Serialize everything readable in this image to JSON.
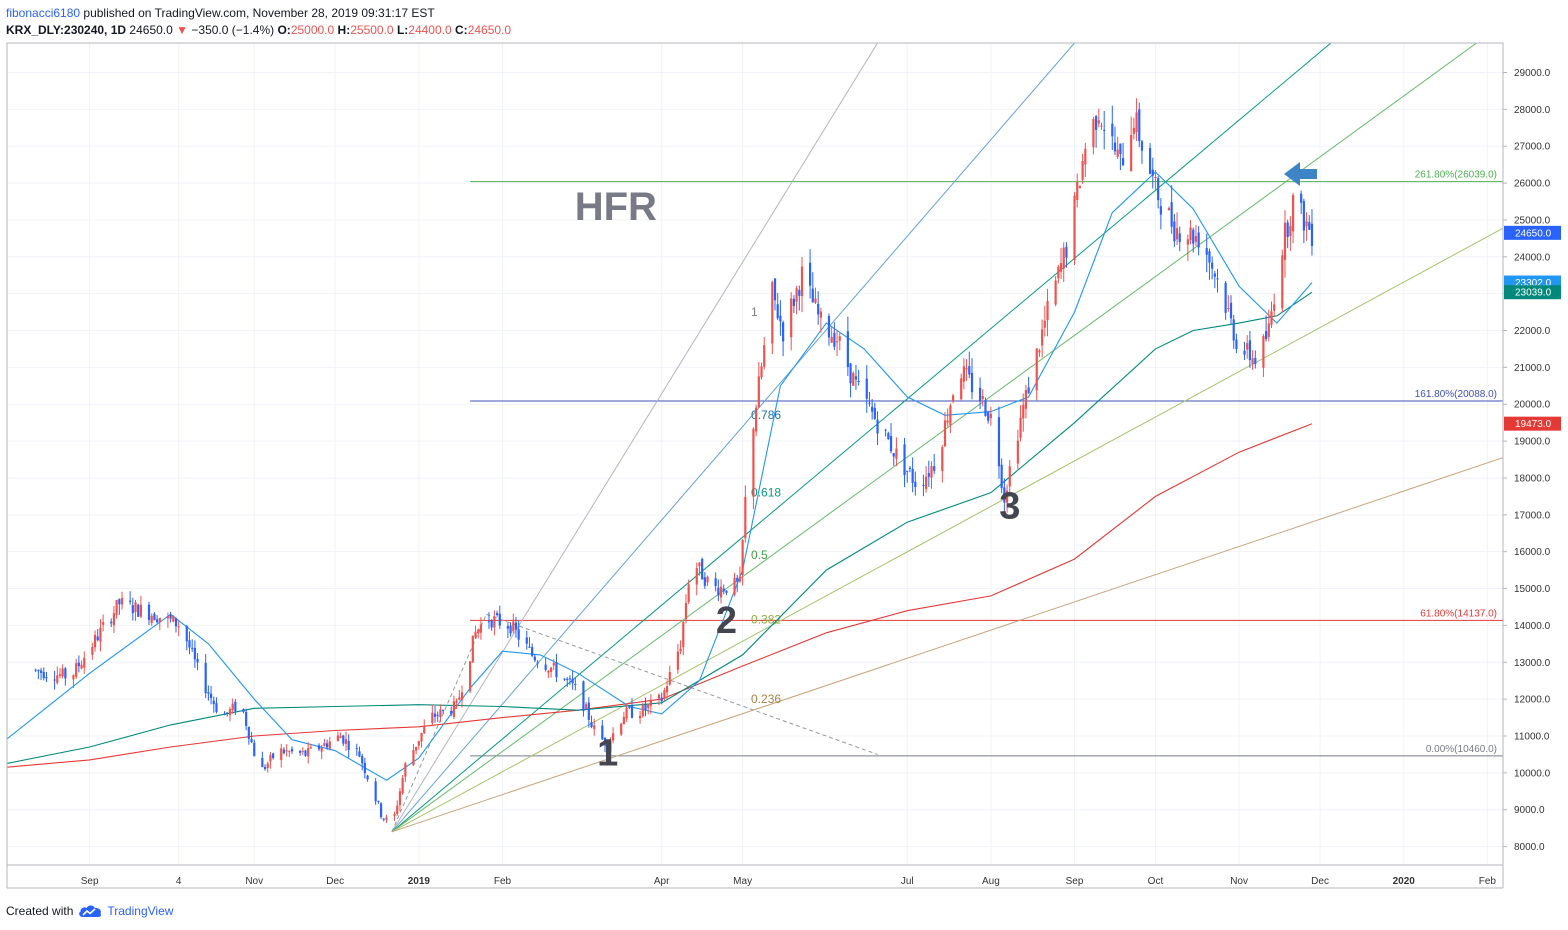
{
  "header": {
    "author": "fibonacci6180",
    "published": "published on TradingView.com, November 28, 2019 09:31:17 EST",
    "symbol": "KRX_DLY:230240, 1D",
    "last": "24650.0",
    "change_arrow": "▼",
    "change": "−350.0 (−1.4%)",
    "o_label": "O:",
    "o_value": "25000.0",
    "h_label": "H:",
    "h_value": "25500.0",
    "l_label": "L:",
    "l_value": "24400.0",
    "c_label": "C:",
    "c_value": "24650.0"
  },
  "footer": {
    "created_with": "Created with",
    "brand": "TradingView",
    "icon": "tradingview-cloud-icon"
  },
  "colors": {
    "up": "#ef5350",
    "down": "#2962ff",
    "grid": "#f0f3fa",
    "ema_short": "#2196f3",
    "ema_mid": "#00897b",
    "ema_long": "#e53935"
  },
  "chart_data": {
    "type": "candlestick",
    "ylim": [
      7500,
      29800
    ],
    "y_ticks": [
      "8000.0",
      "9000.0",
      "10000.0",
      "11000.0",
      "12000.0",
      "13000.0",
      "14000.0",
      "15000.0",
      "16000.0",
      "17000.0",
      "18000.0",
      "19000.0",
      "20000.0",
      "21000.0",
      "22000.0",
      "23000.0",
      "24000.0",
      "25000.0",
      "26000.0",
      "27000.0",
      "28000.0",
      "29000.0"
    ],
    "x_ticks": [
      {
        "label": "Sep",
        "date": "2018-09-01"
      },
      {
        "label": "4",
        "date": "2018-10-04"
      },
      {
        "label": "Nov",
        "date": "2018-11-01"
      },
      {
        "label": "Dec",
        "date": "2018-12-01"
      },
      {
        "label": "2019",
        "date": "2019-01-01",
        "bold": true
      },
      {
        "label": "Feb",
        "date": "2019-02-01"
      },
      {
        "label": "Apr",
        "date": "2019-04-01"
      },
      {
        "label": "May",
        "date": "2019-05-01"
      },
      {
        "label": "Jul",
        "date": "2019-07-01"
      },
      {
        "label": "Aug",
        "date": "2019-08-01"
      },
      {
        "label": "Sep",
        "date": "2019-09-01"
      },
      {
        "label": "Oct",
        "date": "2019-10-01"
      },
      {
        "label": "Nov",
        "date": "2019-11-01"
      },
      {
        "label": "Dec",
        "date": "2019-12-01"
      },
      {
        "label": "2020",
        "date": "2020-01-01",
        "bold": true
      },
      {
        "label": "Feb",
        "date": "2020-02-01"
      }
    ],
    "price_path": [
      [
        "2018-08-10",
        12800
      ],
      [
        "2018-08-25",
        12600
      ],
      [
        "2018-09-12",
        14600
      ],
      [
        "2018-09-25",
        14300
      ],
      [
        "2018-10-05",
        14000
      ],
      [
        "2018-10-12",
        12600
      ],
      [
        "2018-10-20",
        11500
      ],
      [
        "2018-10-27",
        11900
      ],
      [
        "2018-11-03",
        10000
      ],
      [
        "2018-11-10",
        10600
      ],
      [
        "2018-11-20",
        10500
      ],
      [
        "2018-12-03",
        11000
      ],
      [
        "2018-12-10",
        10500
      ],
      [
        "2018-12-18",
        8900
      ],
      [
        "2018-12-22",
        8500
      ],
      [
        "2018-12-27",
        10200
      ],
      [
        "2019-01-05",
        11500
      ],
      [
        "2019-01-15",
        11800
      ],
      [
        "2019-01-22",
        13800
      ],
      [
        "2019-01-26",
        14200
      ],
      [
        "2019-02-04",
        14000
      ],
      [
        "2019-02-12",
        13200
      ],
      [
        "2019-02-20",
        12800
      ],
      [
        "2019-03-01",
        12200
      ],
      [
        "2019-03-08",
        11000
      ],
      [
        "2019-03-12",
        10800
      ],
      [
        "2019-03-18",
        11600
      ],
      [
        "2019-03-25",
        11700
      ],
      [
        "2019-04-01",
        12000
      ],
      [
        "2019-04-08",
        13500
      ],
      [
        "2019-04-12",
        15800
      ],
      [
        "2019-04-20",
        15000
      ],
      [
        "2019-04-30",
        15100
      ],
      [
        "2019-05-03",
        18500
      ],
      [
        "2019-05-07",
        20500
      ],
      [
        "2019-05-12",
        23000
      ],
      [
        "2019-05-16",
        22000
      ],
      [
        "2019-05-23",
        23500
      ],
      [
        "2019-05-30",
        22200
      ],
      [
        "2019-06-05",
        21800
      ],
      [
        "2019-06-12",
        20500
      ],
      [
        "2019-06-20",
        19500
      ],
      [
        "2019-06-28",
        18500
      ],
      [
        "2019-07-05",
        17800
      ],
      [
        "2019-07-12",
        18500
      ],
      [
        "2019-07-20",
        21000
      ],
      [
        "2019-07-28",
        20200
      ],
      [
        "2019-08-02",
        19500
      ],
      [
        "2019-08-06",
        17500
      ],
      [
        "2019-08-10",
        19000
      ],
      [
        "2019-08-15",
        20500
      ],
      [
        "2019-08-22",
        22500
      ],
      [
        "2019-08-30",
        24500
      ],
      [
        "2019-09-05",
        27000
      ],
      [
        "2019-09-10",
        28000
      ],
      [
        "2019-09-18",
        26500
      ],
      [
        "2019-09-23",
        27800
      ],
      [
        "2019-10-01",
        25800
      ],
      [
        "2019-10-08",
        24800
      ],
      [
        "2019-10-18",
        24500
      ],
      [
        "2019-10-25",
        23200
      ],
      [
        "2019-11-01",
        21500
      ],
      [
        "2019-11-08",
        21200
      ],
      [
        "2019-11-12",
        22000
      ],
      [
        "2019-11-16",
        24000
      ],
      [
        "2019-11-21",
        25500
      ],
      [
        "2019-11-28",
        24650
      ]
    ],
    "ema_short": [
      [
        "2018-08-01",
        10900
      ],
      [
        "2018-09-01",
        12700
      ],
      [
        "2018-10-01",
        14300
      ],
      [
        "2018-10-15",
        13500
      ],
      [
        "2018-11-01",
        12000
      ],
      [
        "2018-11-15",
        10900
      ],
      [
        "2018-12-01",
        10600
      ],
      [
        "2018-12-20",
        9800
      ],
      [
        "2019-01-01",
        10400
      ],
      [
        "2019-01-20",
        12300
      ],
      [
        "2019-02-01",
        13300
      ],
      [
        "2019-02-15",
        13200
      ],
      [
        "2019-03-01",
        12700
      ],
      [
        "2019-03-20",
        11800
      ],
      [
        "2019-04-01",
        11600
      ],
      [
        "2019-04-15",
        12500
      ],
      [
        "2019-05-01",
        15500
      ],
      [
        "2019-05-15",
        20500
      ],
      [
        "2019-06-01",
        22200
      ],
      [
        "2019-06-15",
        21500
      ],
      [
        "2019-07-01",
        20200
      ],
      [
        "2019-07-15",
        19700
      ],
      [
        "2019-08-01",
        19800
      ],
      [
        "2019-08-15",
        20200
      ],
      [
        "2019-09-01",
        22500
      ],
      [
        "2019-09-15",
        25200
      ],
      [
        "2019-10-01",
        26300
      ],
      [
        "2019-10-15",
        25300
      ],
      [
        "2019-11-01",
        23200
      ],
      [
        "2019-11-15",
        22200
      ],
      [
        "2019-11-28",
        23302
      ]
    ],
    "ema_mid": [
      [
        "2018-08-01",
        10250
      ],
      [
        "2018-09-01",
        10700
      ],
      [
        "2018-10-01",
        11300
      ],
      [
        "2018-11-01",
        11750
      ],
      [
        "2018-12-01",
        11800
      ],
      [
        "2019-01-01",
        11850
      ],
      [
        "2019-02-01",
        11800
      ],
      [
        "2019-03-01",
        11700
      ],
      [
        "2019-04-01",
        11900
      ],
      [
        "2019-05-01",
        13200
      ],
      [
        "2019-06-01",
        15500
      ],
      [
        "2019-07-01",
        16800
      ],
      [
        "2019-08-01",
        17600
      ],
      [
        "2019-09-01",
        19500
      ],
      [
        "2019-10-01",
        21500
      ],
      [
        "2019-10-15",
        22000
      ],
      [
        "2019-11-01",
        22200
      ],
      [
        "2019-11-15",
        22400
      ],
      [
        "2019-11-28",
        23039
      ]
    ],
    "ema_long": [
      [
        "2018-08-01",
        10150
      ],
      [
        "2018-09-01",
        10350
      ],
      [
        "2018-10-01",
        10700
      ],
      [
        "2018-11-01",
        11000
      ],
      [
        "2018-12-01",
        11150
      ],
      [
        "2019-01-01",
        11250
      ],
      [
        "2019-02-01",
        11500
      ],
      [
        "2019-03-01",
        11700
      ],
      [
        "2019-04-01",
        12000
      ],
      [
        "2019-05-01",
        12900
      ],
      [
        "2019-06-01",
        13800
      ],
      [
        "2019-07-01",
        14400
      ],
      [
        "2019-08-01",
        14800
      ],
      [
        "2019-09-01",
        15800
      ],
      [
        "2019-10-01",
        17500
      ],
      [
        "2019-11-01",
        18700
      ],
      [
        "2019-11-28",
        19473
      ]
    ],
    "fib_levels": [
      {
        "label": "261.80%(26039.0)",
        "value": 26039,
        "color": "#4caf50"
      },
      {
        "label": "161.80%(20088.0)",
        "value": 20088,
        "color": "#3f51b5"
      },
      {
        "label": "61.80%(14137.0)",
        "value": 14137,
        "color": "#e53935"
      },
      {
        "label": "0.00%(10460.0)",
        "value": 10460,
        "color": "#787b86"
      }
    ],
    "fan": {
      "origin": [
        "2018-12-22",
        8400
      ],
      "lines": [
        {
          "to": [
            "2019-06-20",
            29800
          ],
          "color": "#b2b5be"
        },
        {
          "to": [
            "2019-09-01",
            29800
          ],
          "color": "#64a0d8"
        },
        {
          "to": [
            "2019-12-05",
            29800
          ],
          "color": "#089981"
        },
        {
          "to": [
            "2020-01-28",
            29800
          ],
          "color": "#66bb6a"
        },
        {
          "to": [
            "2020-02-25",
            25500
          ],
          "color": "#a5c46a"
        },
        {
          "to": [
            "2020-02-25",
            19000
          ],
          "color": "#c9a37a"
        }
      ],
      "labels": [
        {
          "text": "1",
          "at": [
            "2019-05-03",
            22400
          ],
          "color": "#787b86"
        },
        {
          "text": "0.786",
          "at": [
            "2019-05-03",
            19600
          ],
          "color": "#1e6ea8"
        },
        {
          "text": "0.618",
          "at": [
            "2019-05-03",
            17500
          ],
          "color": "#089981"
        },
        {
          "text": "0.5",
          "at": [
            "2019-05-03",
            15800
          ],
          "color": "#43a047"
        },
        {
          "text": "0.382",
          "at": [
            "2019-05-03",
            14050
          ],
          "color": "#8bab3c"
        },
        {
          "text": "0.236",
          "at": [
            "2019-05-03",
            11900
          ],
          "color": "#a58443"
        }
      ],
      "dashed": [
        [
          [
            "2018-12-22",
            8400
          ],
          [
            "2019-01-26",
            14300
          ]
        ],
        [
          [
            "2019-01-26",
            14300
          ],
          [
            "2019-06-20",
            10500
          ]
        ]
      ]
    },
    "annotations": [
      {
        "text": "HFR",
        "at": [
          "2019-03-15",
          25000
        ],
        "color": "#787b86"
      },
      {
        "text": "1",
        "at": [
          "2019-03-12",
          10200
        ],
        "color": "#434651"
      },
      {
        "text": "2",
        "at": [
          "2019-04-25",
          13800
        ],
        "color": "#434651"
      },
      {
        "text": "3",
        "at": [
          "2019-08-08",
          16900
        ],
        "color": "#434651"
      }
    ],
    "price_labels": [
      {
        "text": "24650.0",
        "value": 24650,
        "color": "#2962ff"
      },
      {
        "text": "23302.0",
        "value": 23302,
        "color": "#2196f3"
      },
      {
        "text": "23039.0",
        "value": 23039,
        "color": "#00897b"
      },
      {
        "text": "19473.0",
        "value": 19473,
        "color": "#e53935"
      }
    ]
  }
}
